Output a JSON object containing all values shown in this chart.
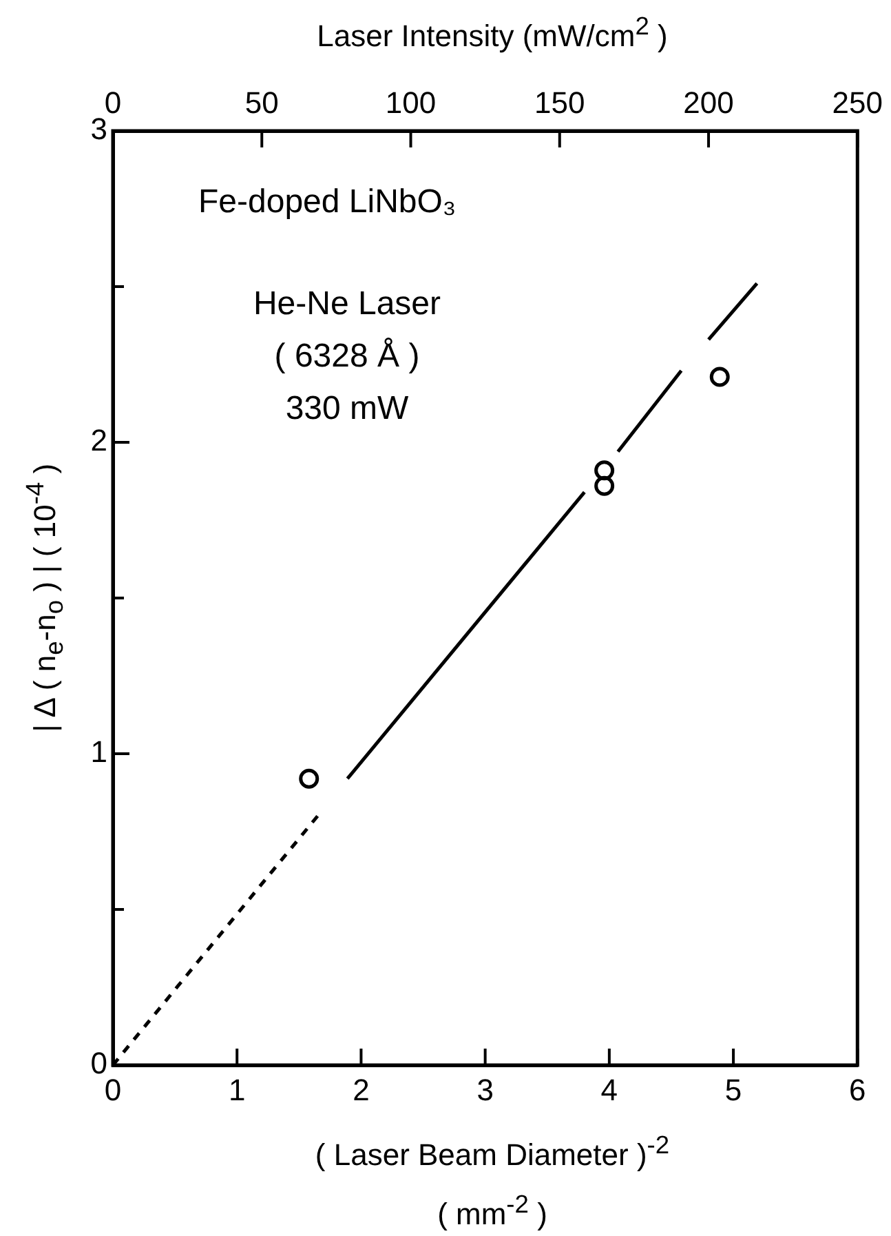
{
  "chart_data": {
    "type": "scatter",
    "xlabel": "( Laser Beam Diameter )$^{-2}$\n( mm$^{-2}$ )",
    "ylabel": "| Δ ( n$_{e}$-n$_{o}$ ) |    ( 10$^{-4}$ )",
    "x2label": "Laser Intensity  (mW/cm$^{2}$ )",
    "xlim": [
      0,
      6
    ],
    "xticks": [
      0,
      1,
      2,
      3,
      4,
      5,
      6
    ],
    "ylim": [
      0,
      3
    ],
    "yticks": [
      0,
      {
        "value": 0.5,
        "label": null
      },
      1,
      {
        "value": 1.5,
        "label": null
      },
      2,
      {
        "value": 2.5,
        "label": null
      },
      3
    ],
    "x2lim": [
      0,
      250
    ],
    "x2ticks": [
      0,
      50,
      100,
      150,
      200,
      250
    ],
    "legend": false,
    "grid": false,
    "annotations": [
      "Fe-doped LiNbO₃",
      "He-Ne Laser",
      "( 6328 Å )",
      "330 mW"
    ],
    "series": [
      {
        "type": "scatter",
        "color": "#000000",
        "marker": "circle",
        "x": [
          1.58,
          3.96,
          3.96,
          4.89
        ],
        "values": [
          0.92,
          1.86,
          1.91,
          2.21
        ]
      },
      {
        "type": "line",
        "color": "#000000",
        "line_style": "dashed",
        "marker": "none",
        "x": [
          0,
          1.67
        ],
        "values": [
          0,
          0.81
        ]
      },
      {
        "type": "line",
        "color": "#000000",
        "line_style": "solid",
        "marker": "none",
        "x": [
          1.89,
          3.8,
          3.93,
          4.07,
          4.58,
          4.69,
          4.8,
          5.19
        ],
        "values": [
          0.92,
          1.84,
          null,
          1.97,
          2.23,
          null,
          2.33,
          2.51
        ]
      }
    ]
  }
}
